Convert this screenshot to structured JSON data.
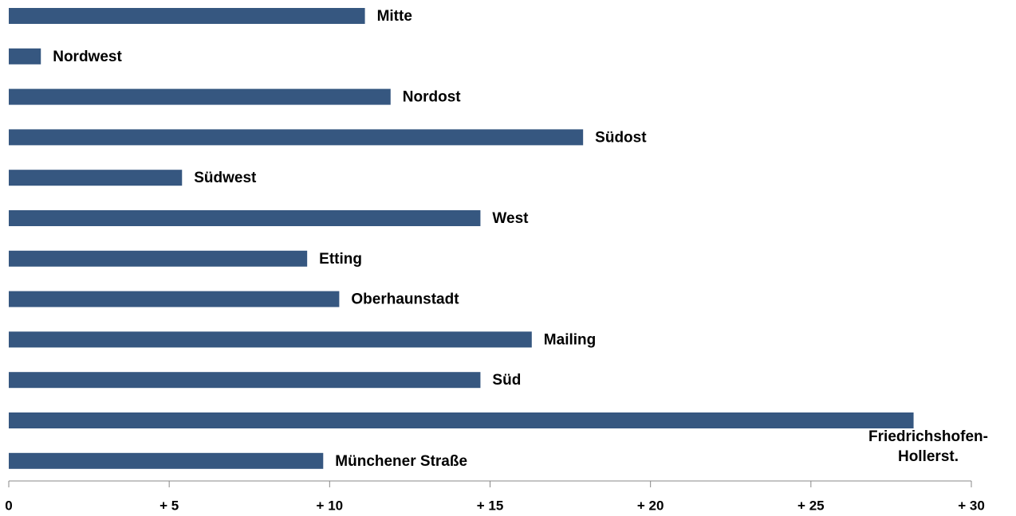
{
  "chart_data": {
    "type": "bar",
    "orientation": "horizontal",
    "categories": [
      "Mitte",
      "Nordwest",
      "Nordost",
      "Südost",
      "Südwest",
      "West",
      "Etting",
      "Oberhaunstadt",
      "Mailing",
      "Süd",
      "Friedrichshofen-Hollerst.",
      "Münchener Straße"
    ],
    "values": [
      11.1,
      1.0,
      11.9,
      17.9,
      5.4,
      14.7,
      9.3,
      10.3,
      16.3,
      14.7,
      28.2,
      9.8
    ],
    "color": "#365780",
    "xlim": [
      0,
      30
    ],
    "xticks": [
      0,
      {
        "value": 5,
        "label": "+ 5"
      },
      {
        "value": 10,
        "label": "+ 10"
      },
      {
        "value": 15,
        "label": "+ 15"
      },
      {
        "value": 20,
        "label": "+ 20"
      },
      {
        "value": 25,
        "label": "+ 25"
      },
      {
        "value": 30,
        "label": "+ 30"
      }
    ],
    "grid": false
  }
}
